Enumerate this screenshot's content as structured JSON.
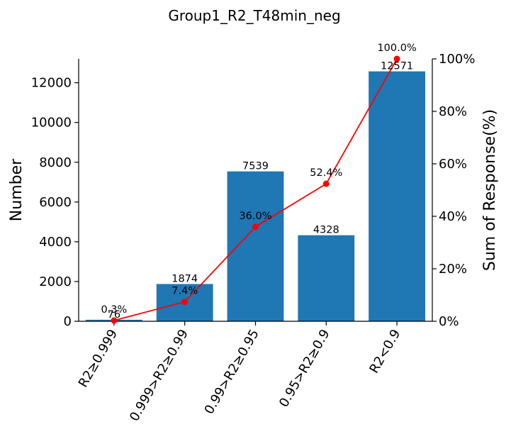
{
  "chart_data": {
    "type": "bar",
    "title": "Group1_R2_T48min_neg",
    "ylabel": "Number",
    "y2label": "Sum of Response(%)",
    "categories": [
      "R2≥0.999",
      "0.999>R2≥0.99",
      "0.99>R2≥0.95",
      "0.95>R2≥0.9",
      "R2<0.9"
    ],
    "values": [
      76,
      1874,
      7539,
      4328,
      12571
    ],
    "value_labels": [
      "76",
      "1874",
      "7539",
      "4328",
      "12571"
    ],
    "cumulative_percent": [
      0.3,
      7.4,
      36.0,
      52.4,
      100.0
    ],
    "percent_labels": [
      "0.3%",
      "7.4%",
      "36.0%",
      "52.4%",
      "100.0%"
    ],
    "ylim": [
      0,
      13200
    ],
    "yticks": [
      0,
      2000,
      4000,
      6000,
      8000,
      10000,
      12000
    ],
    "ytick_labels": [
      "0",
      "2000",
      "4000",
      "6000",
      "8000",
      "10000",
      "12000"
    ],
    "y2lim": [
      0,
      100
    ],
    "y2ticks": [
      0,
      20,
      40,
      60,
      80,
      100
    ],
    "y2tick_labels": [
      "0%",
      "20%",
      "40%",
      "60%",
      "80%",
      "100%"
    ],
    "bar_color": "#1f77b4",
    "line_color": "#ff0000",
    "grid": false
  }
}
